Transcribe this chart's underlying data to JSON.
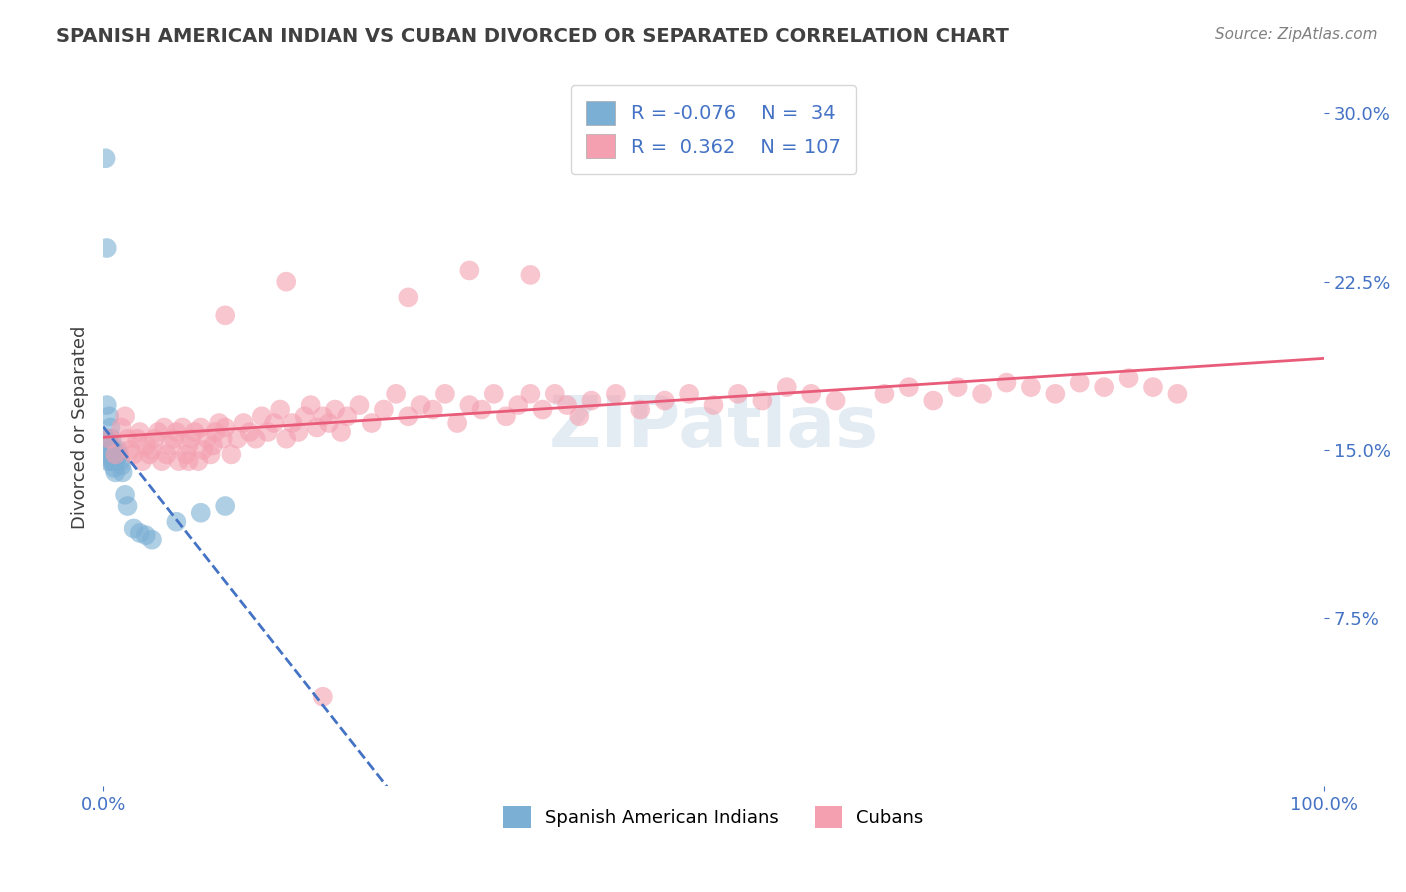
{
  "title": "SPANISH AMERICAN INDIAN VS CUBAN DIVORCED OR SEPARATED CORRELATION CHART",
  "source": "Source: ZipAtlas.com",
  "xlabel": "",
  "ylabel": "Divorced or Separated",
  "x_tick_labels": [
    "0.0%",
    "100.0%"
  ],
  "y_tick_labels_right": [
    "7.5%",
    "15.0%",
    "22.5%",
    "30.0%"
  ],
  "watermark": "ZIPatlas",
  "blue_R": -0.076,
  "blue_N": 34,
  "pink_R": 0.362,
  "pink_N": 107,
  "blue_color": "#7bafd4",
  "pink_color": "#f4a0b0",
  "blue_line_color": "#4472c4",
  "pink_line_color": "#e85c7a",
  "blue_points_x": [
    0.002,
    0.003,
    0.003,
    0.004,
    0.004,
    0.005,
    0.005,
    0.005,
    0.006,
    0.006,
    0.007,
    0.007,
    0.007,
    0.008,
    0.008,
    0.009,
    0.009,
    0.01,
    0.01,
    0.011,
    0.012,
    0.013,
    0.014,
    0.015,
    0.016,
    0.018,
    0.02,
    0.025,
    0.03,
    0.035,
    0.04,
    0.06,
    0.08,
    0.1
  ],
  "blue_points_y": [
    0.28,
    0.24,
    0.17,
    0.155,
    0.145,
    0.165,
    0.155,
    0.148,
    0.16,
    0.152,
    0.155,
    0.15,
    0.145,
    0.148,
    0.145,
    0.142,
    0.15,
    0.145,
    0.14,
    0.148,
    0.15,
    0.148,
    0.145,
    0.143,
    0.14,
    0.13,
    0.125,
    0.115,
    0.113,
    0.112,
    0.11,
    0.118,
    0.122,
    0.125
  ],
  "pink_points_x": [
    0.005,
    0.01,
    0.015,
    0.018,
    0.02,
    0.022,
    0.025,
    0.028,
    0.03,
    0.032,
    0.035,
    0.038,
    0.04,
    0.042,
    0.045,
    0.048,
    0.05,
    0.052,
    0.055,
    0.058,
    0.06,
    0.062,
    0.065,
    0.068,
    0.07,
    0.072,
    0.075,
    0.078,
    0.08,
    0.082,
    0.085,
    0.088,
    0.09,
    0.092,
    0.095,
    0.098,
    0.1,
    0.105,
    0.11,
    0.115,
    0.12,
    0.125,
    0.13,
    0.135,
    0.14,
    0.145,
    0.15,
    0.155,
    0.16,
    0.165,
    0.17,
    0.175,
    0.18,
    0.185,
    0.19,
    0.195,
    0.2,
    0.21,
    0.22,
    0.23,
    0.24,
    0.25,
    0.26,
    0.27,
    0.28,
    0.29,
    0.3,
    0.31,
    0.32,
    0.33,
    0.34,
    0.35,
    0.36,
    0.37,
    0.38,
    0.39,
    0.4,
    0.42,
    0.44,
    0.46,
    0.48,
    0.5,
    0.52,
    0.54,
    0.56,
    0.58,
    0.6,
    0.64,
    0.66,
    0.68,
    0.7,
    0.72,
    0.74,
    0.76,
    0.78,
    0.8,
    0.82,
    0.84,
    0.86,
    0.88,
    0.3,
    0.35,
    0.15,
    0.25,
    0.1,
    0.07,
    0.18
  ],
  "pink_points_y": [
    0.155,
    0.148,
    0.16,
    0.165,
    0.155,
    0.15,
    0.148,
    0.155,
    0.158,
    0.145,
    0.152,
    0.148,
    0.15,
    0.155,
    0.158,
    0.145,
    0.16,
    0.148,
    0.152,
    0.155,
    0.158,
    0.145,
    0.16,
    0.148,
    0.152,
    0.155,
    0.158,
    0.145,
    0.16,
    0.15,
    0.155,
    0.148,
    0.152,
    0.158,
    0.162,
    0.155,
    0.16,
    0.148,
    0.155,
    0.162,
    0.158,
    0.155,
    0.165,
    0.158,
    0.162,
    0.168,
    0.155,
    0.162,
    0.158,
    0.165,
    0.17,
    0.16,
    0.165,
    0.162,
    0.168,
    0.158,
    0.165,
    0.17,
    0.162,
    0.168,
    0.175,
    0.165,
    0.17,
    0.168,
    0.175,
    0.162,
    0.17,
    0.168,
    0.175,
    0.165,
    0.17,
    0.175,
    0.168,
    0.175,
    0.17,
    0.165,
    0.172,
    0.175,
    0.168,
    0.172,
    0.175,
    0.17,
    0.175,
    0.172,
    0.178,
    0.175,
    0.172,
    0.175,
    0.178,
    0.172,
    0.178,
    0.175,
    0.18,
    0.178,
    0.175,
    0.18,
    0.178,
    0.182,
    0.178,
    0.175,
    0.23,
    0.228,
    0.225,
    0.218,
    0.21,
    0.145,
    0.04
  ],
  "xlim": [
    0.0,
    1.0
  ],
  "ylim": [
    0.0,
    0.32
  ],
  "bg_color": "#ffffff",
  "grid_color": "#c0c0c0",
  "title_color": "#404040",
  "axis_label_color": "#4472c4",
  "tick_color": "#4472c4"
}
